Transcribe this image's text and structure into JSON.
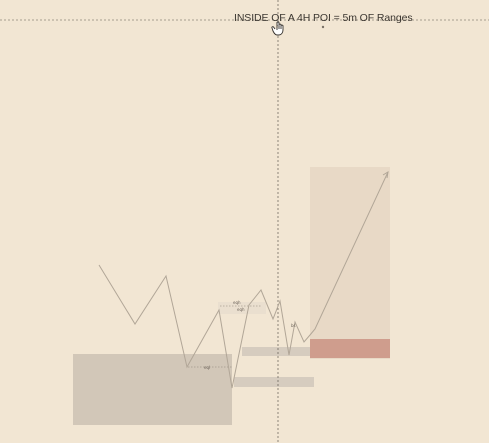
{
  "title": "INSIDE OF A 4H POI = 5m OF Ranges",
  "small_labels": [
    {
      "id": "lbl-sweep",
      "text": "eqh"
    },
    {
      "id": "lbl-sweep-2",
      "text": "eqh"
    },
    {
      "id": "lbl-low",
      "text": "eql"
    },
    {
      "id": "lbl-mid",
      "text": "bs"
    }
  ],
  "colors": {
    "background": "#f2e6d3",
    "poi_box": "#d2c7b8",
    "target_box": "#e8d9c6",
    "entry_zone": "#cf9d8d",
    "range_bar": "#d6ccbf",
    "price_line": "#b1a697",
    "crosshair": "#4a4540"
  },
  "icons": [
    "hand-cursor-icon"
  ]
}
